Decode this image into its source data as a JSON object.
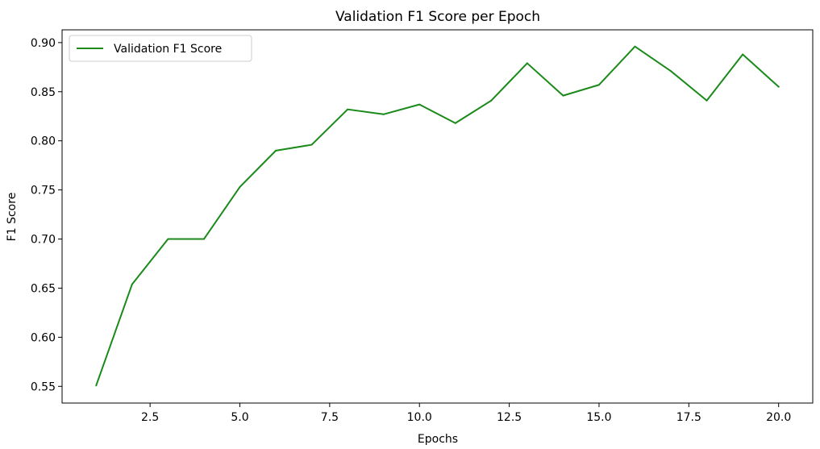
{
  "chart_data": {
    "type": "line",
    "title": "Validation F1 Score per Epoch",
    "xlabel": "Epochs",
    "ylabel": "F1 Score",
    "xlim": [
      0.05,
      20.95
    ],
    "ylim": [
      0.533,
      0.913
    ],
    "x_ticks": [
      2.5,
      5.0,
      7.5,
      10.0,
      12.5,
      15.0,
      17.5,
      20.0
    ],
    "x_tick_labels": [
      "2.5",
      "5.0",
      "7.5",
      "10.0",
      "12.5",
      "15.0",
      "17.5",
      "20.0"
    ],
    "y_ticks": [
      0.55,
      0.6,
      0.65,
      0.7,
      0.75,
      0.8,
      0.85,
      0.9
    ],
    "y_tick_labels": [
      "0.55",
      "0.60",
      "0.65",
      "0.70",
      "0.75",
      "0.80",
      "0.85",
      "0.90"
    ],
    "grid": false,
    "legend_position": "top-left",
    "series": [
      {
        "name": "Validation F1 Score",
        "color": "#1a8a1a",
        "x": [
          1,
          2,
          3,
          4,
          5,
          6,
          7,
          8,
          9,
          10,
          11,
          12,
          13,
          14,
          15,
          16,
          17,
          18,
          19,
          20
        ],
        "y": [
          0.551,
          0.654,
          0.7,
          0.7,
          0.753,
          0.79,
          0.796,
          0.832,
          0.827,
          0.837,
          0.818,
          0.841,
          0.879,
          0.846,
          0.857,
          0.896,
          0.871,
          0.841,
          0.888,
          0.855
        ]
      }
    ]
  }
}
